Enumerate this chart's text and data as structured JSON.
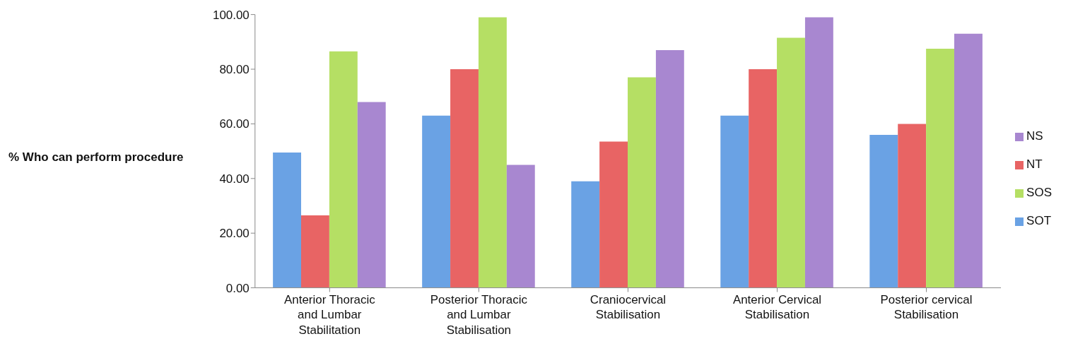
{
  "chart_data": {
    "type": "bar",
    "ylabel": "% Who can perform procedure",
    "categories": [
      "Anterior Thoracic and Lumbar Stabilitation",
      "Posterior Thoracic and Lumbar Stabilisation",
      "Craniocervical Stabilisation",
      "Anterior Cervical Stabilisation",
      "Posterior cervical Stabilisation"
    ],
    "series": [
      {
        "name": "SOT",
        "color": "#6aa2e4",
        "values": [
          49.5,
          63,
          39,
          63,
          56
        ]
      },
      {
        "name": "NT",
        "color": "#e86464",
        "values": [
          26.5,
          80,
          53.5,
          80,
          60
        ]
      },
      {
        "name": "SOS",
        "color": "#b5df64",
        "values": [
          86.5,
          99,
          77,
          91.5,
          87.5
        ]
      },
      {
        "name": "NS",
        "color": "#a887d0",
        "values": [
          68,
          45,
          87,
          99,
          93
        ]
      }
    ],
    "ylim": [
      0,
      100
    ],
    "yticks": [
      {
        "value": 0,
        "label": "0.00"
      },
      {
        "value": 20,
        "label": "20.00"
      },
      {
        "value": 40,
        "label": "40.00"
      },
      {
        "value": 60,
        "label": "60.00"
      },
      {
        "value": 80,
        "label": "80.00"
      },
      {
        "value": 100,
        "label": "100.00"
      }
    ],
    "grid": false,
    "legend": "right"
  }
}
